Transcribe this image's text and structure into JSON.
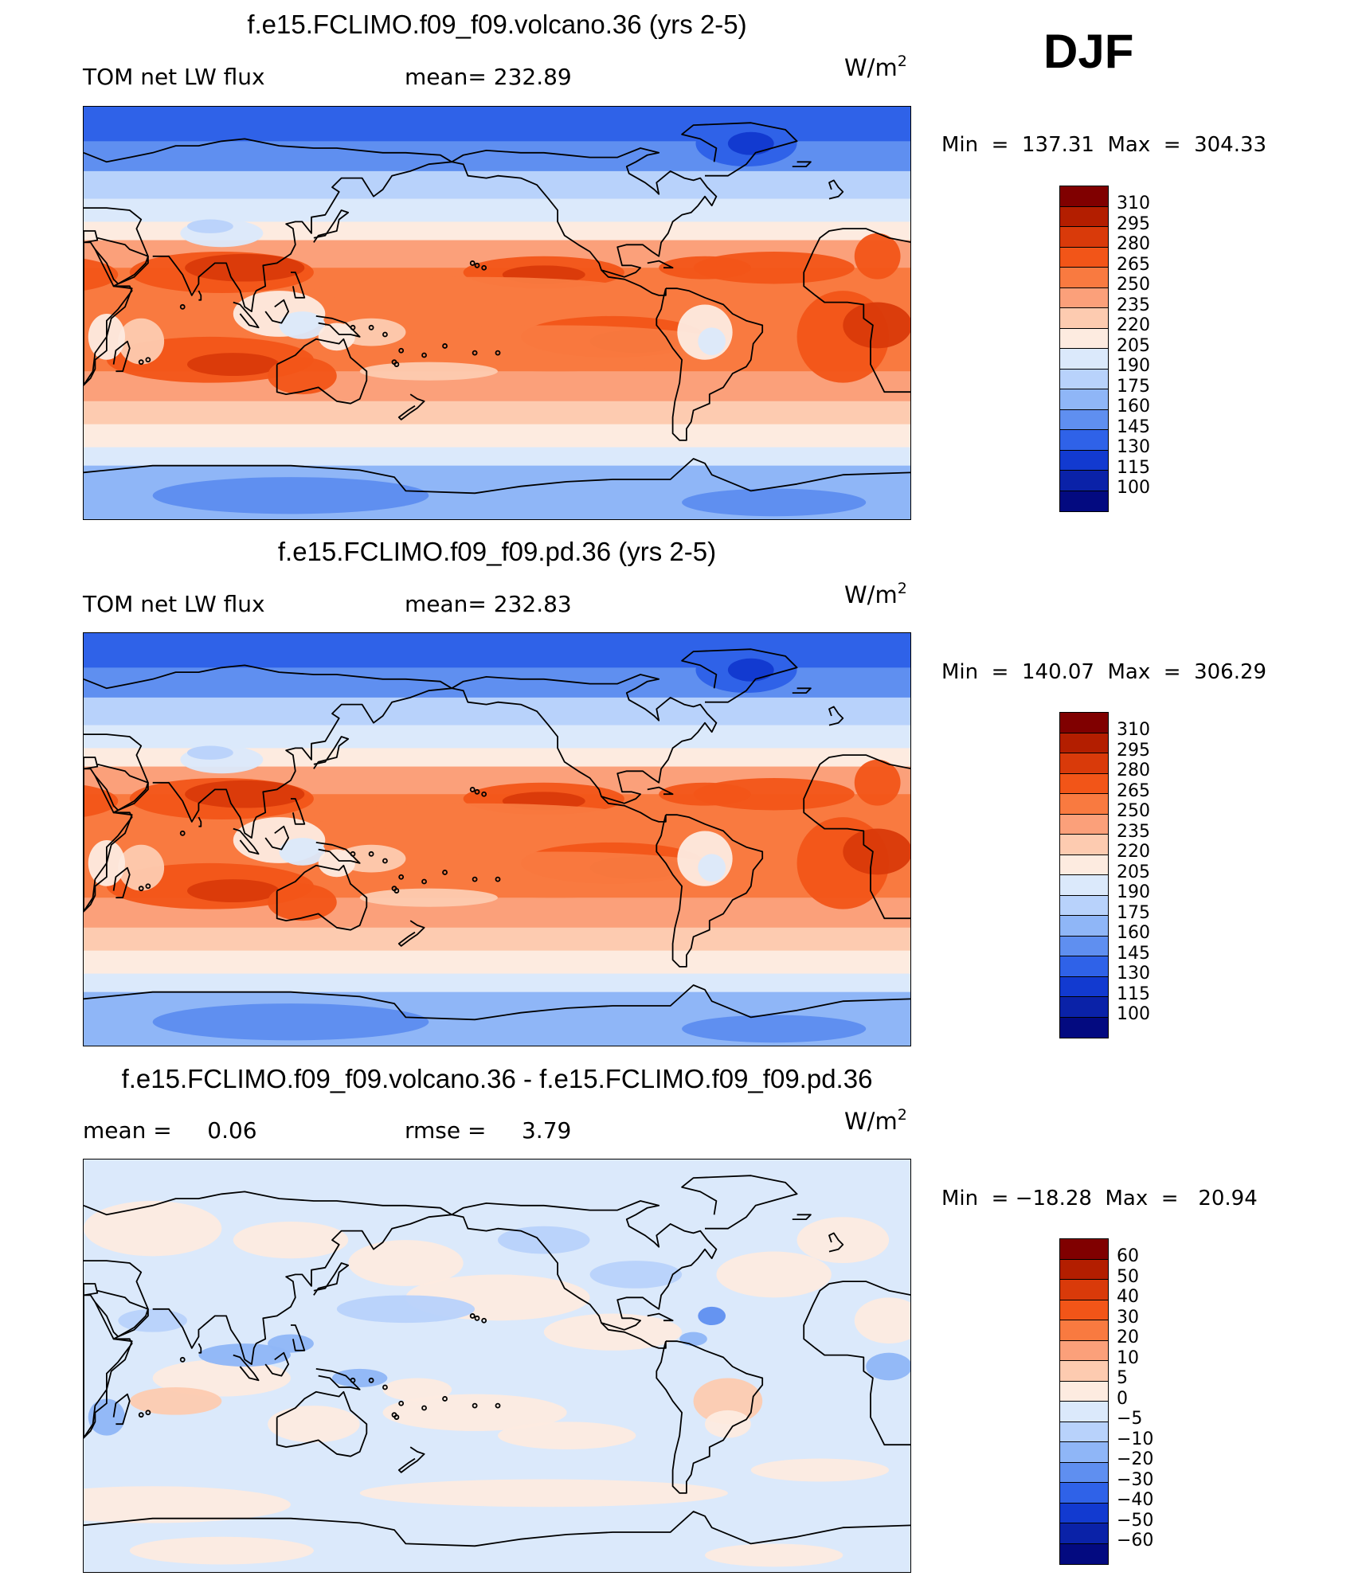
{
  "season": "DJF",
  "panels": [
    {
      "title": "f.e15.FCLIMO.f09_f09.volcano.36 (yrs 2-5)",
      "left_label": "TOM net LW flux",
      "mid_label": "mean= 232.89",
      "units_base": "W/m",
      "units_exp": "2",
      "minmax": "Min  =  137.31  Max  =  304.33",
      "kind": "abs"
    },
    {
      "title": "f.e15.FCLIMO.f09_f09.pd.36 (yrs 2-5)",
      "left_label": "TOM net LW flux",
      "mid_label": "mean= 232.83",
      "units_base": "W/m",
      "units_exp": "2",
      "minmax": "Min  =  140.07  Max  =  306.29",
      "kind": "abs"
    },
    {
      "title": "f.e15.FCLIMO.f09_f09.volcano.36 - f.e15.FCLIMO.f09_f09.pd.36",
      "left_label": "mean =     0.06",
      "mid_label": "rmse =     3.79",
      "units_base": "W/m",
      "units_exp": "2",
      "minmax": "Min  = −18.28  Max  =   20.94",
      "kind": "diff"
    }
  ],
  "colorbar_abs": {
    "labels": [
      "310",
      "295",
      "280",
      "265",
      "250",
      "235",
      "220",
      "205",
      "190",
      "175",
      "160",
      "145",
      "130",
      "115",
      "100"
    ],
    "colors": [
      "#800000",
      "#b31e00",
      "#d93a0a",
      "#f25518",
      "#f97a40",
      "#fba07a",
      "#fdcbb0",
      "#fdebe0",
      "#dbe9fb",
      "#b8d2fb",
      "#8fb6f7",
      "#5f8ff0",
      "#2f62e8",
      "#123ad0",
      "#0a22a8",
      "#030a80"
    ]
  },
  "colorbar_diff": {
    "labels": [
      "60",
      "50",
      "40",
      "30",
      "20",
      "10",
      "5",
      "0",
      "−5",
      "−10",
      "−20",
      "−30",
      "−40",
      "−50",
      "−60"
    ],
    "colors": [
      "#800000",
      "#b31e00",
      "#d93a0a",
      "#f25518",
      "#f97a40",
      "#fba07a",
      "#fdcbb0",
      "#fdebe0",
      "#dbe9fb",
      "#b8d2fb",
      "#8fb6f7",
      "#5f8ff0",
      "#2f62e8",
      "#123ad0",
      "#0a22a8",
      "#030a80"
    ]
  }
}
